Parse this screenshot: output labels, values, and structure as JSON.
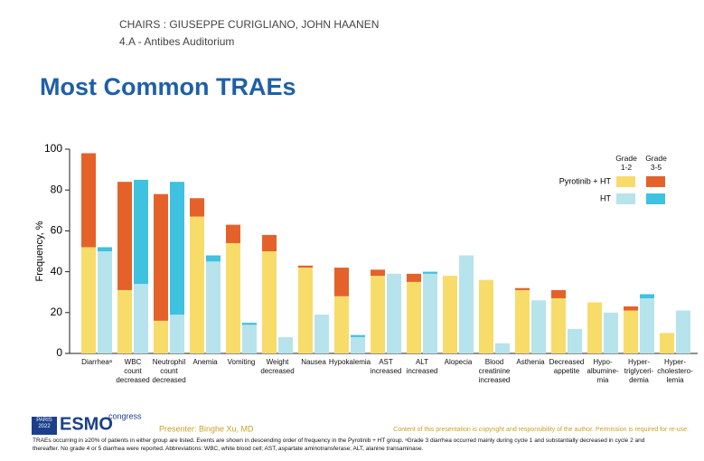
{
  "header": {
    "chairs": "CHAIRS : GIUSEPPE CURIGLIANO, JOHN HAANEN",
    "room": "4.A - Antibes Auditorium"
  },
  "chart_data": {
    "type": "grouped-stacked-bar",
    "title": "Most Common TRAEs",
    "y_label": "Frequency, %",
    "categories": [
      "Diarrheaᵃ",
      "WBC\ncount\ndecreased",
      "Neutrophil\ncount\ndecreased",
      "Anemia",
      "Vomiting",
      "Weight\ndecreased",
      "Nausea",
      "Hypokalemia",
      "AST\nincreased",
      "ALT\nincreased",
      "Alopecia",
      "Blood\ncreatinine\nincreased",
      "Asthenia",
      "Decreased\nappetite",
      "Hypo-\nalbumine-\nmia",
      "Hyper-\ntriglyceri-\ndemia",
      "Hyper-\ncholestero-\nlemia"
    ],
    "legend_columns": [
      "Grade\n1-2",
      "Grade\n3-5"
    ],
    "series": [
      {
        "name": "Pyrotinib + HT",
        "stacks": [
          {
            "color": "#f8dc6a",
            "values": [
              52,
              31,
              16,
              67,
              54,
              50,
              42,
              28,
              38,
              35,
              38,
              36,
              31,
              27,
              25,
              21,
              10
            ]
          },
          {
            "color": "#e4622a",
            "values": [
              46,
              53,
              62,
              9,
              9,
              8,
              1,
              14,
              3,
              4,
              0,
              0,
              1,
              4,
              0,
              2,
              0
            ]
          }
        ]
      },
      {
        "name": "HT",
        "stacks": [
          {
            "color": "#b7e3ec",
            "values": [
              50,
              34,
              19,
              45,
              14,
              8,
              19,
              8,
              39,
              39,
              48,
              5,
              26,
              12,
              20,
              27,
              21
            ]
          },
          {
            "color": "#3fc1e0",
            "values": [
              2,
              51,
              65,
              3,
              1,
              0,
              0,
              1,
              0,
              1,
              0,
              0,
              0,
              0,
              0,
              2,
              0
            ]
          }
        ]
      }
    ],
    "ylim": [
      0,
      100
    ],
    "yticks": [
      0,
      20,
      40,
      60,
      80,
      100
    ]
  },
  "footer": {
    "logo_city": "PARIS\n2022",
    "logo": "ESMO",
    "logo_suffix": "congress",
    "presenter": "Presenter: Binghe Xu, MD",
    "copyright": "Content of this presentation is copyright and responsibility of the author. Permission is required for re-use.",
    "footnote": "TRAEs occurring in ≥20% of patients in either group are listed. Events are shown in descending order of frequency in the Pyrotinib + HT group. ᵃGrade 3 diarrhea occurred mainly during cycle 1 and substantially decreased in cycle 2 and thereafter. No grade 4 or 5 diarrhea were reported. Abbreviations: WBC, white blood cell; AST, aspartate aminotransferase; ALT, alanine transaminase."
  }
}
